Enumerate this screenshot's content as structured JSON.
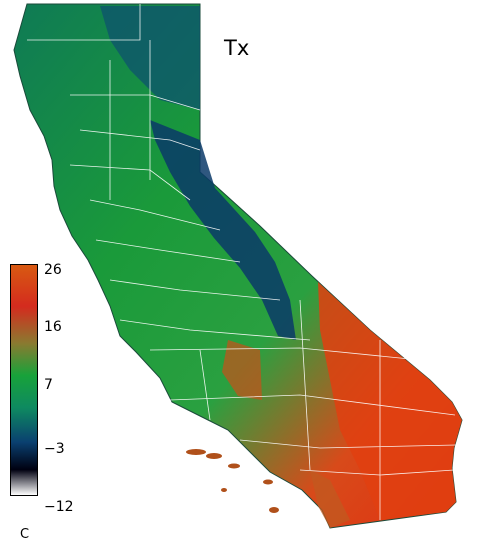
{
  "map": {
    "title": "Tx",
    "unit": "C",
    "legend": {
      "ticks": [
        "26",
        "16",
        "7",
        "−3",
        "−12"
      ],
      "tick_values": [
        26,
        16,
        7,
        -3,
        -12
      ],
      "range": [
        -12,
        26
      ],
      "colors": [
        "#d83a12",
        "#d42b1e",
        "#18a23a",
        "#0a5a72",
        "#000008",
        "#ffffff"
      ]
    }
  }
}
